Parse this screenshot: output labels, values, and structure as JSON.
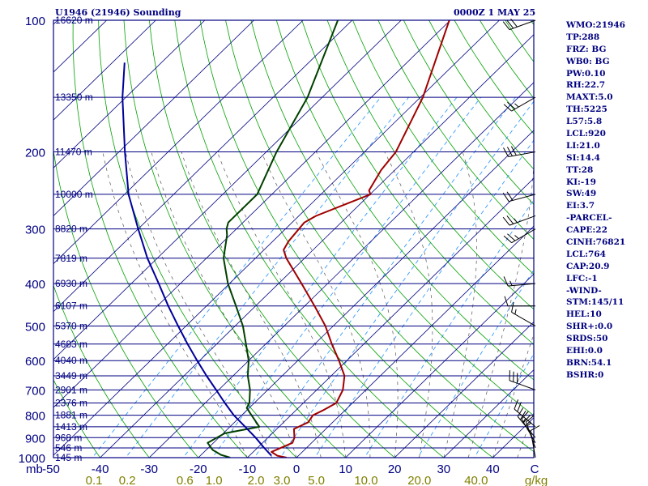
{
  "header": {
    "station": "U1946 (21946) Sounding",
    "time": "0000Z  1 MAY 25"
  },
  "indices": [
    "WMO:21946",
    "TP:288",
    "FRZ: BG",
    "WB0: BG",
    "PW:0.10",
    "RH:22.7",
    "MAXT:5.0",
    "TH:5225",
    "L57:5.8",
    "LCL:920",
    "LI:21.0",
    "SI:14.4",
    "TT:28",
    "KI:-19",
    "SW:49",
    "EI:3.7",
    "-PARCEL-",
    "CAPE:22",
    "CINH:76821",
    "LCL:764",
    "CAP:20.9",
    "LFC:-1",
    "-WIND-",
    "STM:145/11",
    "HEL:10",
    "SHR+:0.0",
    "SRDS:50",
    "EHI:0.0",
    "BRN:54.1",
    "BSHR:0"
  ],
  "colors": {
    "frame": "#000080",
    "isobar": "#000080",
    "isotherm": "#000080",
    "dry_adiabat": "#00a000",
    "mixing_ratio": "#1e90ff",
    "moist_adiabat": "#555555",
    "temperature": "#a00000",
    "dewpoint": "#004000",
    "parcel": "#00009a",
    "mixing_ratio_labels": "#808000",
    "wind_barbs": "#000000"
  },
  "chart_data": {
    "type": "skew-t",
    "xlabel": "C",
    "y_unit": "mb",
    "mixing_ratio_unit": "g/kg",
    "ylim": [
      1000,
      100
    ],
    "xlim": [
      -50,
      50
    ],
    "pressure_ticks": [
      {
        "value": 100,
        "label": "100"
      },
      {
        "value": 200,
        "label": "200"
      },
      {
        "value": 300,
        "label": "300"
      },
      {
        "value": 400,
        "label": "400"
      },
      {
        "value": 500,
        "label": "500"
      },
      {
        "value": 600,
        "label": "600"
      },
      {
        "value": 700,
        "label": "700"
      },
      {
        "value": 800,
        "label": "800"
      },
      {
        "value": 900,
        "label": "900"
      },
      {
        "value": 1000,
        "label": "1000"
      }
    ],
    "temperature_ticks": [
      "-50",
      "-40",
      "-30",
      "-20",
      "-10",
      "0",
      "10",
      "20",
      "30",
      "40"
    ],
    "mixing_ratio_ticks": [
      "0.1",
      "0.2",
      "0.6",
      "1.0",
      "2.0",
      "3.0",
      "5.0",
      "10.0",
      "20.0",
      "40.0"
    ],
    "mixing_ratio_values": [
      0.1,
      0.2,
      0.6,
      1.0,
      2.0,
      3.0,
      5.0,
      10.0,
      20.0,
      40.0
    ],
    "height_levels": [
      {
        "p": 100,
        "label": "16620 m"
      },
      {
        "p": 150,
        "label": "13350 m"
      },
      {
        "p": 200,
        "label": "11470 m"
      },
      {
        "p": 250,
        "label": "10000 m"
      },
      {
        "p": 300,
        "label": "8820 m"
      },
      {
        "p": 350,
        "label": "7819 m"
      },
      {
        "p": 400,
        "label": "6930 m"
      },
      {
        "p": 450,
        "label": "6107 m"
      },
      {
        "p": 500,
        "label": "5370 m"
      },
      {
        "p": 550,
        "label": "4683 m"
      },
      {
        "p": 600,
        "label": "4040 m"
      },
      {
        "p": 650,
        "label": "3449 m"
      },
      {
        "p": 700,
        "label": "2901 m"
      },
      {
        "p": 750,
        "label": "2376 m"
      },
      {
        "p": 800,
        "label": "1881 m"
      },
      {
        "p": 850,
        "label": "1413 m"
      },
      {
        "p": 900,
        "label": "968 m"
      },
      {
        "p": 950,
        "label": "546 m"
      },
      {
        "p": 1000,
        "label": "145 m"
      }
    ],
    "series": [
      {
        "key": "temperature",
        "points": [
          [
            1000,
            -2
          ],
          [
            990,
            -4.3
          ],
          [
            970,
            -6.3
          ],
          [
            925,
            -3.9
          ],
          [
            900,
            -4.6
          ],
          [
            860,
            -6.5
          ],
          [
            830,
            -5.0
          ],
          [
            800,
            -5.5
          ],
          [
            780,
            -4.5
          ],
          [
            750,
            -3.3
          ],
          [
            700,
            -4.7
          ],
          [
            650,
            -7.3
          ],
          [
            600,
            -11.6
          ],
          [
            550,
            -16.5
          ],
          [
            500,
            -21.6
          ],
          [
            450,
            -28.0
          ],
          [
            400,
            -35.3
          ],
          [
            350,
            -43.7
          ],
          [
            335,
            -46.0
          ],
          [
            320,
            -46.8
          ],
          [
            290,
            -47.5
          ],
          [
            280,
            -46.5
          ],
          [
            250,
            -39.9
          ],
          [
            245,
            -41.0
          ],
          [
            220,
            -42.8
          ],
          [
            200,
            -43.6
          ],
          [
            150,
            -49.5
          ],
          [
            100,
            -60.2
          ]
        ]
      },
      {
        "key": "dewpoint",
        "points": [
          [
            1000,
            -13.5
          ],
          [
            985,
            -16.0
          ],
          [
            960,
            -18.7
          ],
          [
            925,
            -21.2
          ],
          [
            880,
            -19.7
          ],
          [
            850,
            -14.0
          ],
          [
            800,
            -18.0
          ],
          [
            770,
            -20.5
          ],
          [
            750,
            -21.0
          ],
          [
            700,
            -23.6
          ],
          [
            650,
            -27.0
          ],
          [
            600,
            -30.0
          ],
          [
            550,
            -34.0
          ],
          [
            500,
            -38.4
          ],
          [
            450,
            -44.0
          ],
          [
            400,
            -50.3
          ],
          [
            350,
            -56.5
          ],
          [
            310,
            -60.6
          ],
          [
            300,
            -62.0
          ],
          [
            290,
            -63.0
          ],
          [
            250,
            -63.0
          ],
          [
            200,
            -67.9
          ],
          [
            150,
            -73.0
          ],
          [
            100,
            -82.9
          ]
        ]
      },
      {
        "key": "parcel",
        "points": [
          [
            990,
            -5.5
          ],
          [
            950,
            -8.6
          ],
          [
            900,
            -12.5
          ],
          [
            850,
            -16.9
          ],
          [
            800,
            -21.6
          ],
          [
            750,
            -26.0
          ],
          [
            700,
            -30.5
          ],
          [
            650,
            -35.4
          ],
          [
            600,
            -40.5
          ],
          [
            550,
            -45.9
          ],
          [
            500,
            -51.6
          ],
          [
            450,
            -57.8
          ],
          [
            400,
            -64.4
          ],
          [
            350,
            -72.0
          ],
          [
            300,
            -80.0
          ],
          [
            250,
            -89.2
          ],
          [
            200,
            -98.8
          ],
          [
            150,
            -110.7
          ],
          [
            125,
            -117.5
          ]
        ]
      }
    ],
    "winds": [
      {
        "p": 100,
        "dir": 250,
        "kt": 30
      },
      {
        "p": 150,
        "dir": 240,
        "kt": 25
      },
      {
        "p": 200,
        "dir": 260,
        "kt": 30
      },
      {
        "p": 250,
        "dir": 255,
        "kt": 20
      },
      {
        "p": 280,
        "dir": 250,
        "kt": 25
      },
      {
        "p": 300,
        "dir": 240,
        "kt": 25
      },
      {
        "p": 400,
        "dir": 265,
        "kt": 15
      },
      {
        "p": 450,
        "dir": 270,
        "kt": 10
      },
      {
        "p": 500,
        "dir": 300,
        "kt": 15
      },
      {
        "p": 700,
        "dir": 290,
        "kt": 30
      },
      {
        "p": 850,
        "dir": 310,
        "kt": 20
      },
      {
        "p": 900,
        "dir": 320,
        "kt": 25
      },
      {
        "p": 925,
        "dir": 330,
        "kt": 25
      },
      {
        "p": 950,
        "dir": 340,
        "kt": 15
      },
      {
        "p": 1000,
        "dir": 350,
        "kt": 10
      }
    ]
  }
}
